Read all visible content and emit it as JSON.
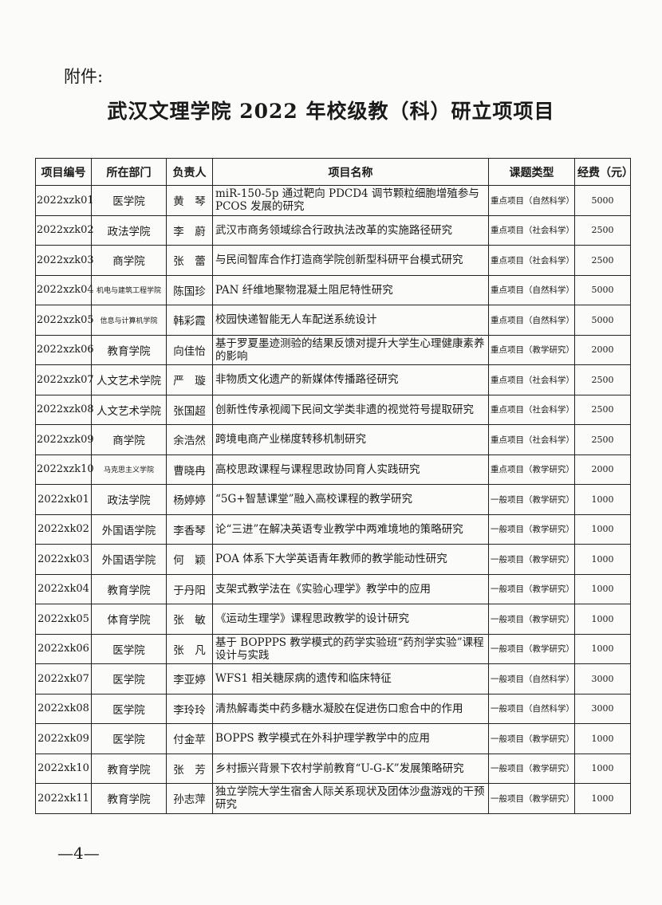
{
  "attachment_label": "附件:",
  "title": "武汉文理学院 2022 年校级教（科）研立项项目",
  "columns": [
    "项目编号",
    "所在部门",
    "负责人",
    "项目名称",
    "课题类型",
    "经费（元）"
  ],
  "rows": [
    [
      "2022xzk01",
      "医学院",
      "黄　琴",
      "miR-150-5p 通过靶向 PDCD4 调节颗粒细胞增殖参与 PCOS 发展的研究",
      "重点项目（自然科学）",
      "5000"
    ],
    [
      "2022xzk02",
      "政法学院",
      "李　蔚",
      "武汉市商务领域综合行政执法改革的实施路径研究",
      "重点项目（社会科学）",
      "2500"
    ],
    [
      "2022xzk03",
      "商学院",
      "张　蕾",
      "与民间智库合作打造商学院创新型科研平台模式研究",
      "重点项目（社会科学）",
      "2500"
    ],
    [
      "2022xzk04",
      "机电与建筑工程学院",
      "陈国珍",
      "PAN 纤维地聚物混凝土阻尼特性研究",
      "重点项目（自然科学）",
      "5000"
    ],
    [
      "2022xzk05",
      "信息与计算机学院",
      "韩彩霞",
      "校园快递智能无人车配送系统设计",
      "重点项目（自然科学）",
      "5000"
    ],
    [
      "2022xzk06",
      "教育学院",
      "向佳怡",
      "基于罗夏墨迹测验的结果反馈对提升大学生心理健康素养的影响",
      "重点项目（教学研究）",
      "2000"
    ],
    [
      "2022xzk07",
      "人文艺术学院",
      "严　璇",
      "非物质文化遗产的新媒体传播路径研究",
      "重点项目（社会科学）",
      "2500"
    ],
    [
      "2022xzk08",
      "人文艺术学院",
      "张国超",
      "创新性传承视阈下民间文学类非遗的视觉符号提取研究",
      "重点项目（社会科学）",
      "2500"
    ],
    [
      "2022xzk09",
      "商学院",
      "余浩然",
      "跨境电商产业梯度转移机制研究",
      "重点项目（社会科学）",
      "2500"
    ],
    [
      "2022xzk10",
      "马克思主义学院",
      "曹晓冉",
      "高校思政课程与课程思政协同育人实践研究",
      "重点项目（教学研究）",
      "2000"
    ],
    [
      "2022xk01",
      "政法学院",
      "杨婷婷",
      "“5G+智慧课堂”融入高校课程的教学研究",
      "一般项目（教学研究）",
      "1000"
    ],
    [
      "2022xk02",
      "外国语学院",
      "李香琴",
      "论“三进”在解决英语专业教学中两难境地的策略研究",
      "一般项目（教学研究）",
      "1000"
    ],
    [
      "2022xk03",
      "外国语学院",
      "何　颖",
      "POA 体系下大学英语青年教师的教学能动性研究",
      "一般项目（教学研究）",
      "1000"
    ],
    [
      "2022xk04",
      "教育学院",
      "于丹阳",
      "支架式教学法在《实验心理学》教学中的应用",
      "一般项目（教学研究）",
      "1000"
    ],
    [
      "2022xk05",
      "体育学院",
      "张　敏",
      "《运动生理学》课程思政教学的设计研究",
      "一般项目（教学研究）",
      "1000"
    ],
    [
      "2022xk06",
      "医学院",
      "张　凡",
      "基于 BOPPPS 教学模式的药学实验班“药剂学实验”课程设计与实践",
      "一般项目（教学研究）",
      "1000"
    ],
    [
      "2022xk07",
      "医学院",
      "李亚婷",
      "WFS1 相关糖尿病的遗传和临床特征",
      "一般项目（自然科学）",
      "3000"
    ],
    [
      "2022xk08",
      "医学院",
      "李玲玲",
      "清热解毒类中药多糖水凝胶在促进伤口愈合中的作用",
      "一般项目（自然科学）",
      "3000"
    ],
    [
      "2022xk09",
      "医学院",
      "付金苹",
      "BOPPS 教学模式在外科护理学教学中的应用",
      "一般项目（教学研究）",
      "1000"
    ],
    [
      "2022xk10",
      "教育学院",
      "张　芳",
      "乡村振兴背景下农村学前教育“U-G-K”发展策略研究",
      "一般项目（教学研究）",
      "1000"
    ],
    [
      "2022xk11",
      "教育学院",
      "孙志萍",
      "独立学院大学生宿舍人际关系现状及团体沙盘游戏的干预研究",
      "一般项目（教学研究）",
      "1000"
    ]
  ],
  "page_number": "—4—"
}
